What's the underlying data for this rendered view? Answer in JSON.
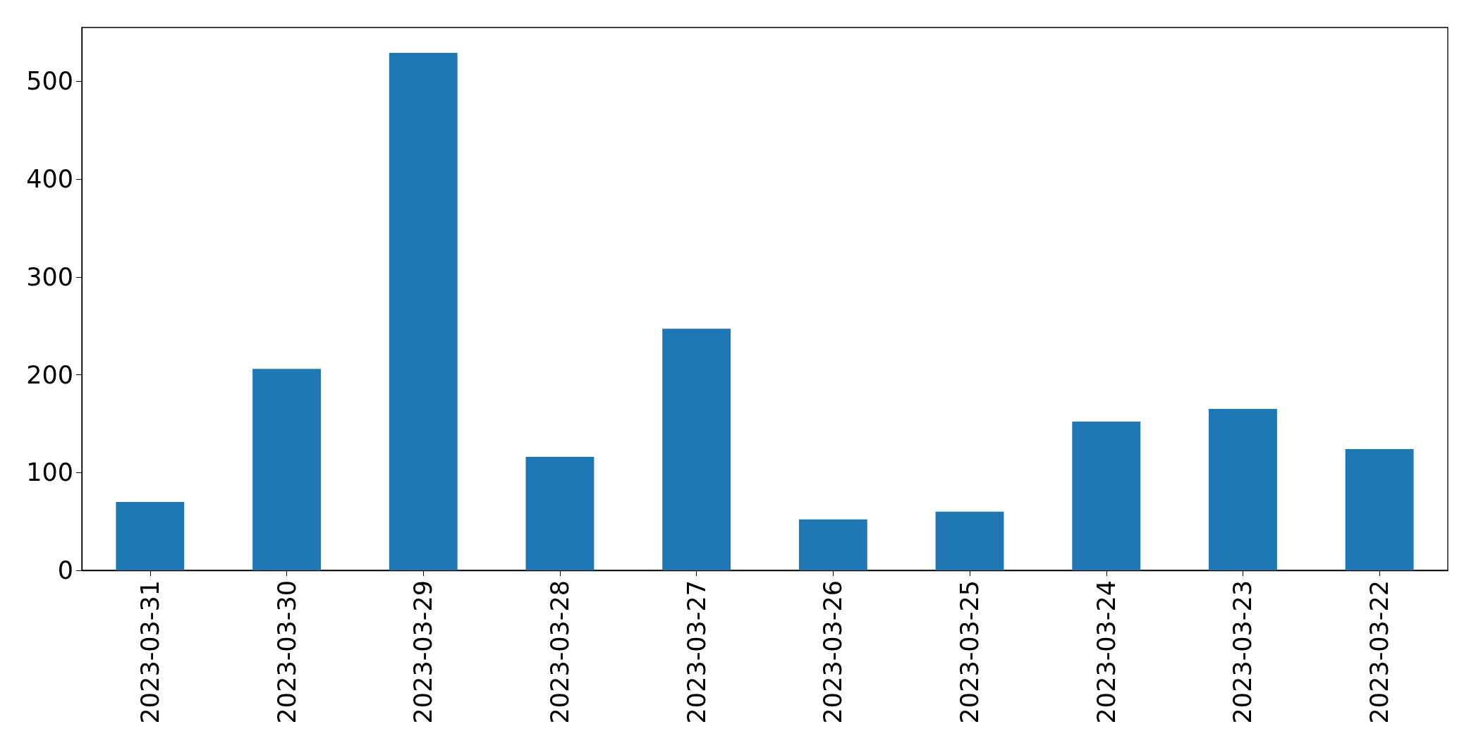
{
  "chart_data": {
    "type": "bar",
    "categories": [
      "2023-03-31",
      "2023-03-30",
      "2023-03-29",
      "2023-03-28",
      "2023-03-27",
      "2023-03-26",
      "2023-03-25",
      "2023-03-24",
      "2023-03-23",
      "2023-03-22"
    ],
    "values": [
      70,
      206,
      529,
      116,
      247,
      52,
      60,
      152,
      165,
      124
    ],
    "color": "#1f77b4",
    "ylim": [
      0,
      555
    ],
    "yticks": [
      0,
      100,
      200,
      300,
      400,
      500
    ],
    "grid": false
  }
}
